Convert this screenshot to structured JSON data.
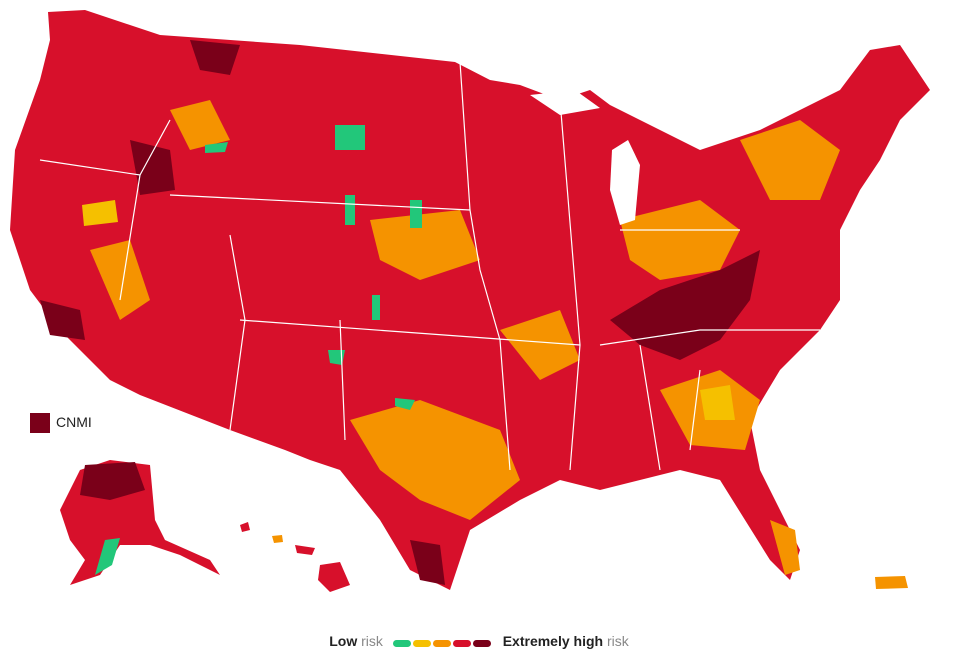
{
  "map": {
    "cnmi": "CNMI",
    "legend": {
      "low": "Low",
      "low_suffix": "risk",
      "high": "Extremely high",
      "high_suffix": "risk",
      "colors": [
        "#22c77a",
        "#f5c000",
        "#f59300",
        "#d7102b",
        "#7a0019"
      ]
    }
  }
}
